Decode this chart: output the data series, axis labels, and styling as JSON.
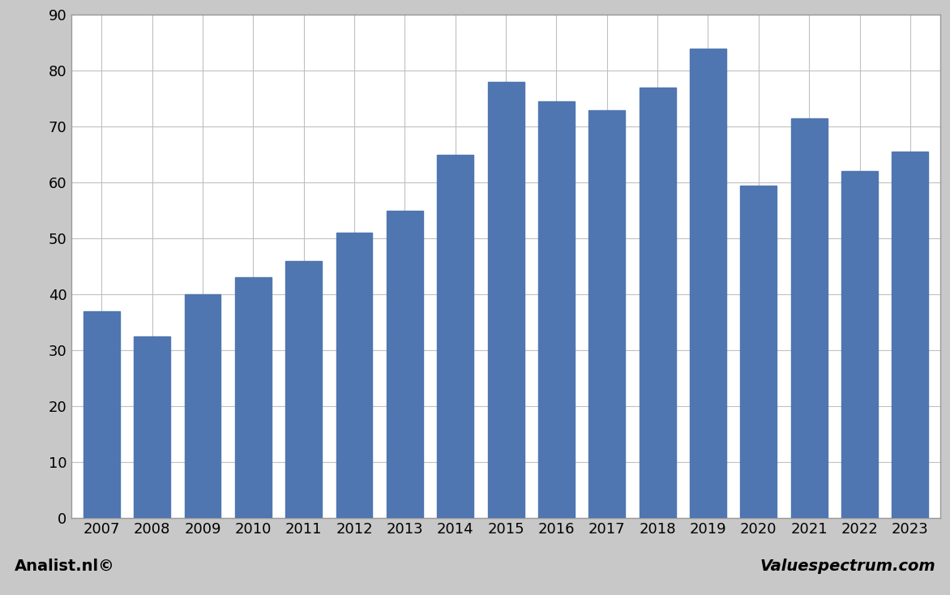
{
  "years": [
    2007,
    2008,
    2009,
    2010,
    2011,
    2012,
    2013,
    2014,
    2015,
    2016,
    2017,
    2018,
    2019,
    2020,
    2021,
    2022,
    2023
  ],
  "values": [
    37,
    32.5,
    40,
    43,
    46,
    51,
    55,
    65,
    78,
    74.5,
    73,
    77,
    84,
    59.5,
    71.5,
    62,
    65.5
  ],
  "bar_color": "#4F76B0",
  "ylim": [
    0,
    90
  ],
  "yticks": [
    0,
    10,
    20,
    30,
    40,
    50,
    60,
    70,
    80,
    90
  ],
  "plot_bg_color": "#ffffff",
  "outer_bg_color": "#c8c8c8",
  "grid_color": "#c0c0c0",
  "footer_left": "Analist.nl©",
  "footer_right": "Valuespectrum.com",
  "footer_fontsize": 14,
  "tick_fontsize": 13,
  "bar_width": 0.72
}
